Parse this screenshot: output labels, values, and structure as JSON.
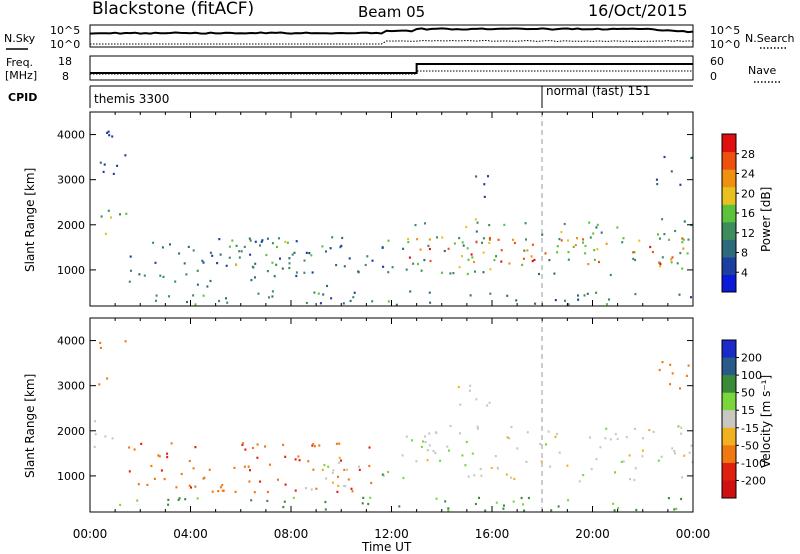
{
  "header": {
    "station": "Blackstone (fitACF)",
    "beam": "Beam 05",
    "date": "16/Oct/2015"
  },
  "sky_panel": {
    "left_label": "N.Sky",
    "right_label": "N.Search",
    "left_ticks": [
      "10^5",
      "10^0"
    ],
    "right_ticks": [
      "10^5",
      "10^0"
    ]
  },
  "freq_panel": {
    "left_label_1": "Freq.",
    "left_label_2": "[MHz]",
    "right_label": "Nave",
    "left_ticks": [
      "18",
      "8"
    ],
    "right_ticks": [
      "60",
      "0"
    ]
  },
  "cpid_panel": {
    "label": "CPID",
    "modes": [
      {
        "text": "themis 3300",
        "start_hour": 0.0
      },
      {
        "text": "normal (fast) 151",
        "start_hour": 18.0
      }
    ]
  },
  "chart_data": [
    {
      "type": "heatmap",
      "quantity": "Power",
      "ylabel": "Slant Range [km]",
      "xlabel": "Time UT",
      "ylim": [
        200,
        4500
      ],
      "xlim_hours": [
        0,
        24
      ],
      "y_ticks": [
        1000,
        2000,
        3000,
        4000
      ],
      "x_tick_labels": [
        "00:00",
        "04:00",
        "08:00",
        "12:00",
        "16:00",
        "20:00",
        "00:00"
      ],
      "colorbar": {
        "label": "Power [dB]",
        "ticks": [
          "28",
          "24",
          "20",
          "16",
          "12",
          "8",
          "4"
        ],
        "colors": [
          "#0a1ad8",
          "#1a3fa0",
          "#2e6b7a",
          "#3c8c5e",
          "#5cc23c",
          "#e8c020",
          "#f09010",
          "#ee5010",
          "#e01010"
        ]
      },
      "echo_bands": [
        {
          "t0": 0.0,
          "t1": 0.9,
          "r0": 1550,
          "r1": 2450,
          "level": 16
        },
        {
          "t0": 0.2,
          "t1": 1.4,
          "r0": 3050,
          "r1": 4150,
          "level": 6
        },
        {
          "t0": 0.6,
          "t1": 1.6,
          "r0": 2100,
          "r1": 2450,
          "level": 12
        },
        {
          "t0": 1.5,
          "t1": 11.7,
          "r0": 650,
          "r1": 1750,
          "level": 8
        },
        {
          "t0": 5.5,
          "t1": 9.5,
          "r0": 1050,
          "r1": 1700,
          "level": 14
        },
        {
          "t0": 11.5,
          "t1": 12.1,
          "r0": 950,
          "r1": 1850,
          "level": 14
        },
        {
          "t0": 12.4,
          "t1": 24.0,
          "r0": 900,
          "r1": 2150,
          "level": 14
        },
        {
          "t0": 12.6,
          "t1": 24.0,
          "r0": 1150,
          "r1": 1750,
          "level": 26
        },
        {
          "t0": 14.5,
          "t1": 16.0,
          "r0": 2550,
          "r1": 3150,
          "level": 6
        },
        {
          "t0": 22.5,
          "t1": 24.0,
          "r0": 2900,
          "r1": 3600,
          "level": 6
        },
        {
          "t0": 1.0,
          "t1": 24.0,
          "r0": 250,
          "r1": 550,
          "level": 10
        }
      ]
    },
    {
      "type": "heatmap",
      "quantity": "Velocity",
      "ylabel": "Slant Range [km]",
      "xlabel": "Time UT",
      "ylim": [
        200,
        4500
      ],
      "xlim_hours": [
        0,
        24
      ],
      "y_ticks": [
        1000,
        2000,
        3000,
        4000
      ],
      "x_tick_labels": [
        "00:00",
        "04:00",
        "08:00",
        "12:00",
        "16:00",
        "20:00",
        "00:00"
      ],
      "colorbar": {
        "label": "Velocity [m s⁻¹]",
        "ticks": [
          "200",
          "100",
          "50",
          "15",
          "-15",
          "-50",
          "-100",
          "-200"
        ],
        "colors": [
          "#1a2ac8",
          "#2a5a8a",
          "#3a8a3a",
          "#7ad63a",
          "#c8c8c0",
          "#f0b020",
          "#f07810",
          "#e02010",
          "#d01010"
        ]
      },
      "echo_bands": [
        {
          "t0": 0.0,
          "t1": 0.9,
          "r0": 1550,
          "r1": 2450,
          "v": 0
        },
        {
          "t0": 0.2,
          "t1": 1.4,
          "r0": 3050,
          "r1": 4150,
          "v": -60
        },
        {
          "t0": 1.5,
          "t1": 11.7,
          "r0": 650,
          "r1": 1750,
          "v": -70
        },
        {
          "t0": 8.0,
          "t1": 11.0,
          "r0": 700,
          "r1": 1500,
          "v": 0
        },
        {
          "t0": 11.5,
          "t1": 12.1,
          "r0": 950,
          "r1": 1850,
          "v": 30
        },
        {
          "t0": 12.4,
          "t1": 24.0,
          "r0": 900,
          "r1": 2150,
          "v": 0
        },
        {
          "t0": 14.5,
          "t1": 16.0,
          "r0": 2550,
          "r1": 3150,
          "v": 0
        },
        {
          "t0": 22.5,
          "t1": 24.0,
          "r0": 2900,
          "r1": 3600,
          "v": -40
        },
        {
          "t0": 1.0,
          "t1": 24.0,
          "r0": 250,
          "r1": 550,
          "v": 40
        }
      ]
    }
  ]
}
